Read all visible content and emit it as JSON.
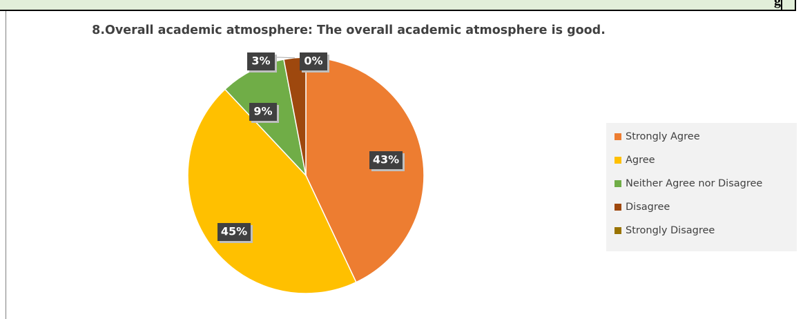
{
  "banner": {
    "text": "g"
  },
  "chart_data": {
    "type": "pie",
    "title": "8.Overall academic atmosphere: The overall academic atmosphere is good.",
    "slices": [
      {
        "label": "Strongly Agree",
        "value": 43,
        "display": "43%",
        "color": "#ed7d31"
      },
      {
        "label": "Agree",
        "value": 45,
        "display": "45%",
        "color": "#ffc000"
      },
      {
        "label": "Neither Agree nor Disagree",
        "value": 9,
        "display": "9%",
        "color": "#70ad47"
      },
      {
        "label": "Disagree",
        "value": 3,
        "display": "3%",
        "color": "#9e480e"
      },
      {
        "label": "Strongly Disagree",
        "value": 0,
        "display": "0%",
        "color": "#997300"
      }
    ],
    "legend_position": "right",
    "data_label_style": "dark boxes with white bold text"
  }
}
